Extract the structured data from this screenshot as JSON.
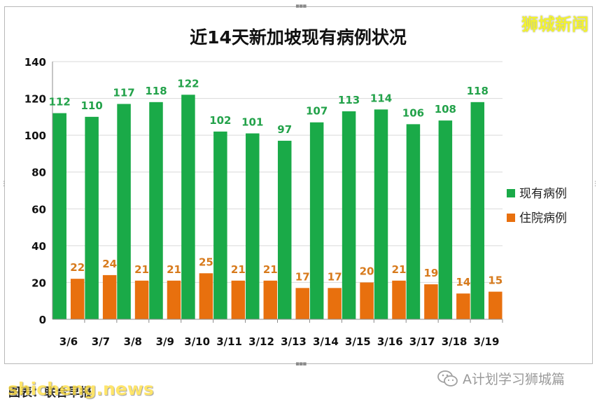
{
  "brand": "狮城新闻",
  "source": "图表：联合早报",
  "watermark": "shicheng.news",
  "wechat_account": "A计划学习狮城篇",
  "colors": {
    "series_1": "#1aaa48",
    "series_2": "#e8700e",
    "series_1_label": "#23a24a",
    "series_2_label": "#d77a1c",
    "brand": "#f2f230"
  },
  "chart_data": {
    "type": "bar",
    "title": "近14天新加坡现有病例状况",
    "xlabel": "",
    "ylabel": "",
    "categories": [
      "3/6",
      "3/7",
      "3/8",
      "3/9",
      "3/10",
      "3/11",
      "3/12",
      "3/13",
      "3/14",
      "3/15",
      "3/16",
      "3/17",
      "3/18",
      "3/19"
    ],
    "series": [
      {
        "name": "现有病例",
        "values": [
          112,
          110,
          117,
          118,
          122,
          102,
          101,
          97,
          107,
          113,
          114,
          106,
          108,
          118
        ]
      },
      {
        "name": "住院病例",
        "values": [
          22,
          24,
          21,
          21,
          25,
          21,
          21,
          17,
          17,
          20,
          21,
          19,
          14,
          15
        ]
      }
    ],
    "ylim": [
      0,
      140
    ],
    "yticks": [
      0,
      20,
      40,
      60,
      80,
      100,
      120,
      140
    ],
    "grid": true,
    "legend_position": "right",
    "data_labels": true
  }
}
